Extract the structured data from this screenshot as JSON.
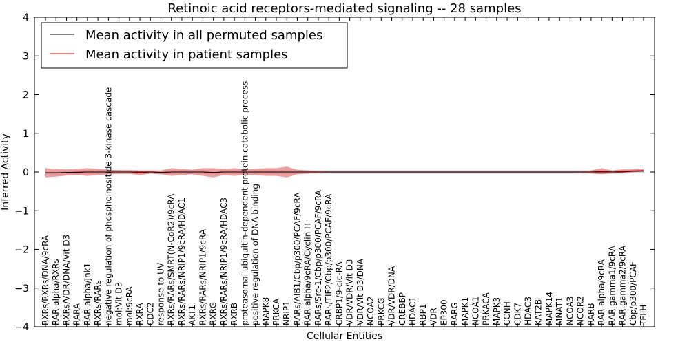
{
  "chart_data": {
    "type": "line",
    "title": "Retinoic acid receptors-mediated signaling -- 28 samples",
    "xlabel": "Cellular Entities",
    "ylabel": "Inferred Activity",
    "ylim": [
      -4,
      4
    ],
    "yticks": [
      -4,
      -3,
      -2,
      -1,
      0,
      1,
      2,
      3,
      4
    ],
    "legend_position": "upper-left",
    "categories": [
      "RXRs/RXRs/DNA/9cRA",
      "RAR alpha/RXRs",
      "RXRs/VDR/DNA/Vit D3",
      "RARA",
      "RAR alpha/Jnk1",
      "RXRs/RARs",
      "negative regulation of phosphoinositide 3-kinase cascade",
      "mol:Vit D3",
      "mol:9cRA",
      "RXRA",
      "CDC2",
      "response to UV",
      "RXRs/RARs/SMRT(N-CoR2)/9cRA",
      "RXRs/RARs/NRIP1/9cRA/HDAC1",
      "AKT1",
      "RXRs/RARs/NRIP1/9cRA",
      "RXRG",
      "RXRs/RARs/NRIP1/9cRA/HDAC3",
      "RXRB",
      "proteasomal ubiquitin-dependent protein catabolic process",
      "positive regulation of DNA binding",
      "MAPK8",
      "PRKCA",
      "NRIP1",
      "RARs/AIB1/Cbp/p300/PCAF/9cRA",
      "RAR alpha/9cRA/Cyclin H",
      "RARs/Src-1/Cbp/p300/PCAF/9cRA",
      "RARs/TIF2/Cbp/p300/PCAF/9cRA",
      "CRBP1/9-cic-RA",
      "VDR/VDR/Vit D3",
      "VDR/Vit D3/DNA",
      "NCOA2",
      "PRKCG",
      "VDR/VDR/DNA",
      "CREBBP",
      "HDAC1",
      "RBP1",
      "VDR",
      "EP300",
      "RARG",
      "MAPK1",
      "NCOA1",
      "PRKACA",
      "MAPK3",
      "CCNH",
      "CDK7",
      "HDAC3",
      "KAT2B",
      "MAPK14",
      "MNAT1",
      "NCOA3",
      "NCOR2",
      "RARB",
      "RAR alpha/9cRA",
      "RAR gamma1/9cRA",
      "RAR gamma2/9cRA",
      "Cbp/p300/PCAF",
      "TFIIH"
    ],
    "series": [
      {
        "name": "Mean activity in all permuted samples",
        "color": "#000000",
        "band_color": "#c5c9d6",
        "values": [
          -0.02,
          -0.02,
          -0.01,
          -0.01,
          0.0,
          0.0,
          0.0,
          0.0,
          0.0,
          0.0,
          0.0,
          -0.01,
          0.0,
          0.0,
          0.0,
          0.0,
          -0.01,
          0.0,
          0.0,
          0.0,
          0.0,
          0.0,
          0.0,
          0.0,
          0.0,
          0.0,
          0.0,
          0.0,
          0.0,
          0.0,
          0.0,
          0.0,
          0.0,
          0.0,
          0.0,
          0.0,
          0.0,
          0.0,
          0.0,
          0.0,
          0.0,
          0.0,
          0.0,
          0.0,
          0.0,
          0.0,
          0.0,
          0.0,
          0.0,
          0.0,
          0.0,
          0.0,
          0.0,
          0.0,
          0.0,
          0.0,
          0.02,
          0.02
        ],
        "band": [
          0.05,
          0.05,
          0.05,
          0.05,
          0.05,
          0.05,
          0.05,
          0.05,
          0.05,
          0.05,
          0.05,
          0.05,
          0.05,
          0.05,
          0.05,
          0.05,
          0.05,
          0.05,
          0.05,
          0.05,
          0.05,
          0.05,
          0.05,
          0.05,
          0.05,
          0.05,
          0.05,
          0.05,
          0.05,
          0.05,
          0.05,
          0.05,
          0.05,
          0.05,
          0.05,
          0.05,
          0.05,
          0.05,
          0.05,
          0.05,
          0.05,
          0.05,
          0.05,
          0.05,
          0.05,
          0.05,
          0.05,
          0.05,
          0.05,
          0.05,
          0.05,
          0.05,
          0.05,
          0.05,
          0.05,
          0.05,
          0.05,
          0.05
        ]
      },
      {
        "name": "Mean activity in patient samples",
        "color": "#ff0000",
        "band_color": "#e06060",
        "values": [
          -0.02,
          -0.02,
          -0.01,
          0.0,
          0.0,
          0.0,
          0.0,
          0.0,
          0.0,
          -0.02,
          0.0,
          -0.01,
          0.0,
          0.0,
          0.0,
          0.0,
          -0.02,
          0.0,
          0.0,
          0.0,
          0.0,
          0.0,
          0.0,
          0.0,
          0.0,
          0.0,
          0.0,
          0.0,
          0.0,
          0.0,
          0.0,
          0.0,
          0.0,
          0.0,
          0.0,
          0.0,
          0.0,
          0.0,
          0.0,
          0.0,
          0.0,
          0.0,
          0.0,
          0.0,
          0.0,
          0.0,
          0.0,
          0.0,
          0.0,
          0.0,
          0.0,
          0.0,
          0.0,
          0.02,
          0.0,
          0.02,
          0.03,
          0.04
        ],
        "band": [
          0.12,
          0.1,
          0.08,
          0.08,
          0.1,
          0.08,
          0.06,
          0.05,
          0.05,
          0.06,
          0.04,
          0.05,
          0.1,
          0.08,
          0.06,
          0.1,
          0.12,
          0.08,
          0.1,
          0.07,
          0.08,
          0.1,
          0.1,
          0.14,
          0.06,
          0.04,
          0.03,
          0.02,
          0.02,
          0.02,
          0.02,
          0.02,
          0.02,
          0.02,
          0.02,
          0.02,
          0.02,
          0.02,
          0.02,
          0.02,
          0.02,
          0.02,
          0.02,
          0.02,
          0.02,
          0.02,
          0.02,
          0.02,
          0.02,
          0.02,
          0.02,
          0.02,
          0.04,
          0.08,
          0.04,
          0.05,
          0.04,
          0.03
        ]
      }
    ]
  }
}
